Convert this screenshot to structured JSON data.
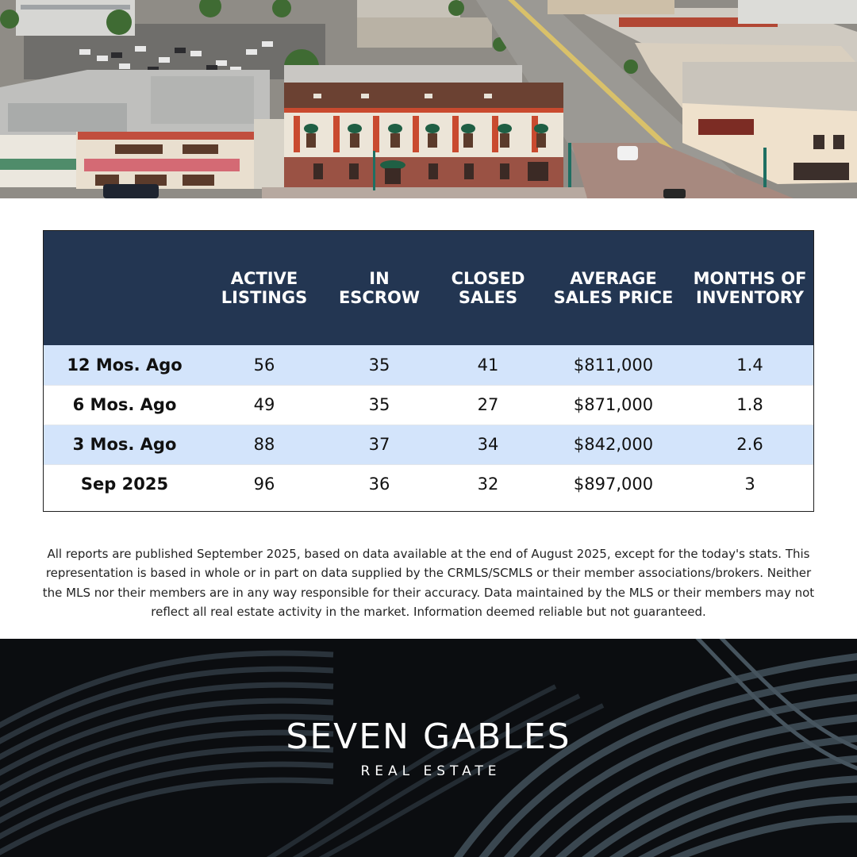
{
  "stats_table": {
    "headers": [
      "",
      "ACTIVE\nLISTINGS",
      "IN\nESCROW",
      "CLOSED\nSALES",
      "AVERAGE\nSALES PRICE",
      "MONTHS OF\nINVENTORY"
    ],
    "rows": [
      {
        "period": "12 Mos. Ago",
        "active_listings": "56",
        "in_escrow": "35",
        "closed_sales": "41",
        "average_sales_price": "$811,000",
        "months_of_inventory": "1.4"
      },
      {
        "period": "6 Mos. Ago",
        "active_listings": "49",
        "in_escrow": "35",
        "closed_sales": "27",
        "average_sales_price": "$871,000",
        "months_of_inventory": "1.8"
      },
      {
        "period": "3 Mos. Ago",
        "active_listings": "88",
        "in_escrow": "37",
        "closed_sales": "34",
        "average_sales_price": "$842,000",
        "months_of_inventory": "2.6"
      },
      {
        "period": "Sep 2025",
        "active_listings": "96",
        "in_escrow": "36",
        "closed_sales": "32",
        "average_sales_price": "$897,000",
        "months_of_inventory": "3"
      }
    ]
  },
  "disclaimer": "All reports are published September 2025, based on data available at the end of August 2025, except for the today's stats. This representation is based in whole or in part on data supplied by the CRMLS/SCMLS or their member associations/brokers. Neither the MLS nor their members are in any way responsible for their accuracy. Data maintained by the MLS or their members may not reflect all real estate activity in the market. Information deemed reliable but not guaranteed.",
  "brand": {
    "name": "SEVEN GABLES",
    "tagline": "REAL ESTATE"
  },
  "colors": {
    "header_navy": "#233652",
    "row_highlight": "#d3e4fb",
    "footer_background": "#0b0d10"
  }
}
